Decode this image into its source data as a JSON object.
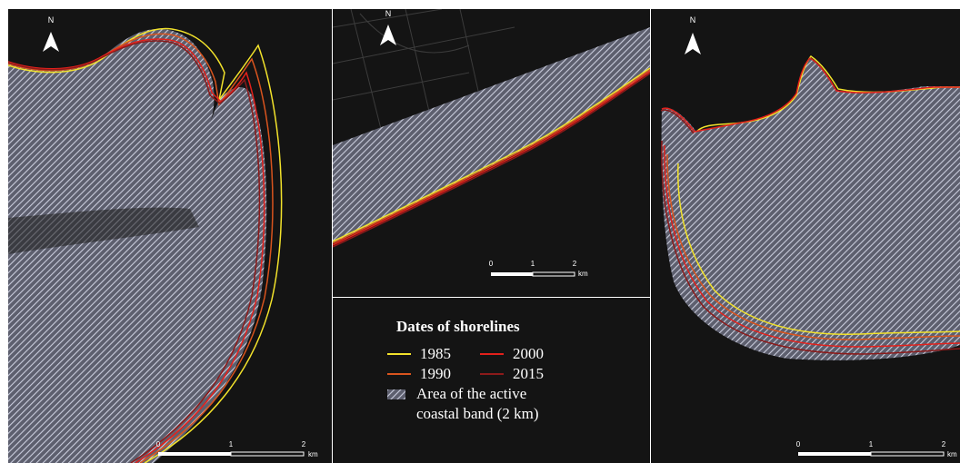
{
  "legend": {
    "title": "Dates of shorelines",
    "items": [
      {
        "year": "1985",
        "color": "#f2e22b"
      },
      {
        "year": "2000",
        "color": "#e3201b"
      },
      {
        "year": "1990",
        "color": "#d9541e"
      },
      {
        "year": "2015",
        "color": "#8b1a1a"
      }
    ],
    "area_label_line1": "Area of the active",
    "area_label_line2": "coastal band (2 km)"
  },
  "north_label": "N",
  "scale_bar": {
    "ticks": [
      "0",
      "1",
      "2"
    ],
    "unit": "km"
  },
  "colors": {
    "background": "#141414",
    "hatch": "#b9bccd",
    "shore_1985": "#f2e22b",
    "shore_1990": "#d9541e",
    "shore_2000": "#e3201b",
    "shore_2015": "#8b1a1a"
  }
}
